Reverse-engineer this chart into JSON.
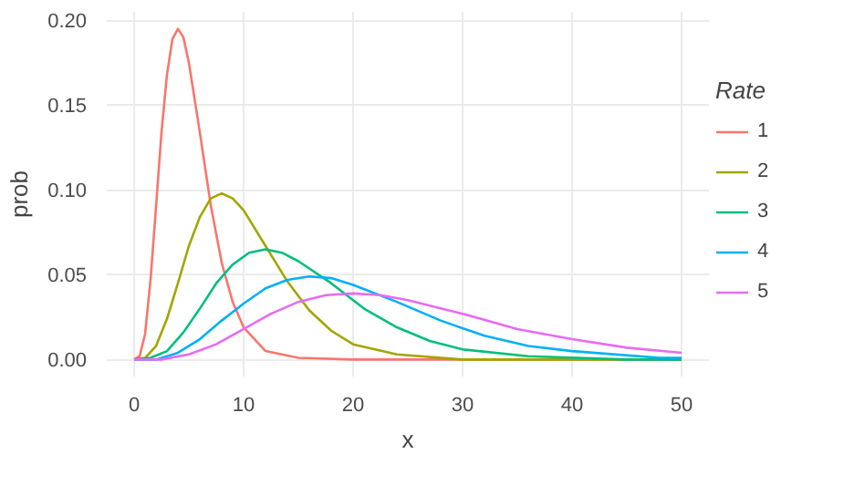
{
  "chart_data": {
    "type": "line",
    "xlabel": "x",
    "ylabel": "prob",
    "legend_title": "Rate",
    "legend": "right",
    "grid": true,
    "xlim": [
      -2.5,
      52.5
    ],
    "ylim": [
      -0.01,
      0.205
    ],
    "xticks": [
      0,
      10,
      20,
      30,
      40,
      50
    ],
    "yticks": [
      {
        "value": 0,
        "label": "0.00"
      },
      {
        "value": 0.05,
        "label": "0.05"
      },
      {
        "value": 0.1,
        "label": "0.10"
      },
      {
        "value": 0.15,
        "label": "0.15"
      },
      {
        "value": 0.2,
        "label": "0.20"
      }
    ],
    "series": [
      {
        "name": "1",
        "color": "#f8766d",
        "x": [
          0,
          0.5,
          1,
          1.5,
          2,
          2.5,
          3,
          3.5,
          4,
          4.5,
          5,
          6,
          7,
          8,
          9,
          10,
          12,
          15,
          20,
          50
        ],
        "values": [
          0,
          0.002,
          0.015,
          0.047,
          0.09,
          0.134,
          0.168,
          0.189,
          0.195,
          0.19,
          0.175,
          0.134,
          0.091,
          0.057,
          0.034,
          0.019,
          0.005,
          0.001,
          0,
          0
        ]
      },
      {
        "name": "2",
        "color": "#a3a500",
        "x": [
          0,
          1,
          2,
          3,
          4,
          5,
          6,
          7,
          8,
          9,
          10,
          12,
          14,
          16,
          18,
          20,
          24,
          30,
          40,
          50
        ],
        "values": [
          0,
          0.001,
          0.008,
          0.024,
          0.045,
          0.067,
          0.084,
          0.095,
          0.098,
          0.095,
          0.088,
          0.067,
          0.046,
          0.029,
          0.017,
          0.009,
          0.003,
          0,
          0,
          0
        ]
      },
      {
        "name": "3",
        "color": "#00bf7d",
        "x": [
          0,
          1.5,
          3,
          4.5,
          6,
          7.5,
          9,
          10.5,
          12,
          13.5,
          15,
          18,
          21,
          24,
          27,
          30,
          36,
          45,
          50
        ],
        "values": [
          0,
          0.001,
          0.005,
          0.016,
          0.03,
          0.045,
          0.056,
          0.063,
          0.065,
          0.063,
          0.058,
          0.045,
          0.03,
          0.019,
          0.011,
          0.006,
          0.002,
          0,
          0
        ]
      },
      {
        "name": "4",
        "color": "#00b0f6",
        "x": [
          0,
          2,
          4,
          6,
          8,
          10,
          12,
          14,
          16,
          18,
          20,
          24,
          28,
          32,
          36,
          40,
          48,
          50
        ],
        "values": [
          0,
          0,
          0.004,
          0.012,
          0.023,
          0.033,
          0.042,
          0.047,
          0.049,
          0.048,
          0.044,
          0.034,
          0.023,
          0.014,
          0.008,
          0.005,
          0.001,
          0.001
        ]
      },
      {
        "name": "5",
        "color": "#e76bf3",
        "x": [
          0,
          2.5,
          5,
          7.5,
          10,
          12.5,
          15,
          17.5,
          20,
          22.5,
          25,
          30,
          35,
          40,
          45,
          50
        ],
        "values": [
          0,
          0,
          0.003,
          0.009,
          0.018,
          0.027,
          0.034,
          0.038,
          0.039,
          0.038,
          0.035,
          0.027,
          0.018,
          0.012,
          0.007,
          0.004
        ]
      }
    ]
  }
}
